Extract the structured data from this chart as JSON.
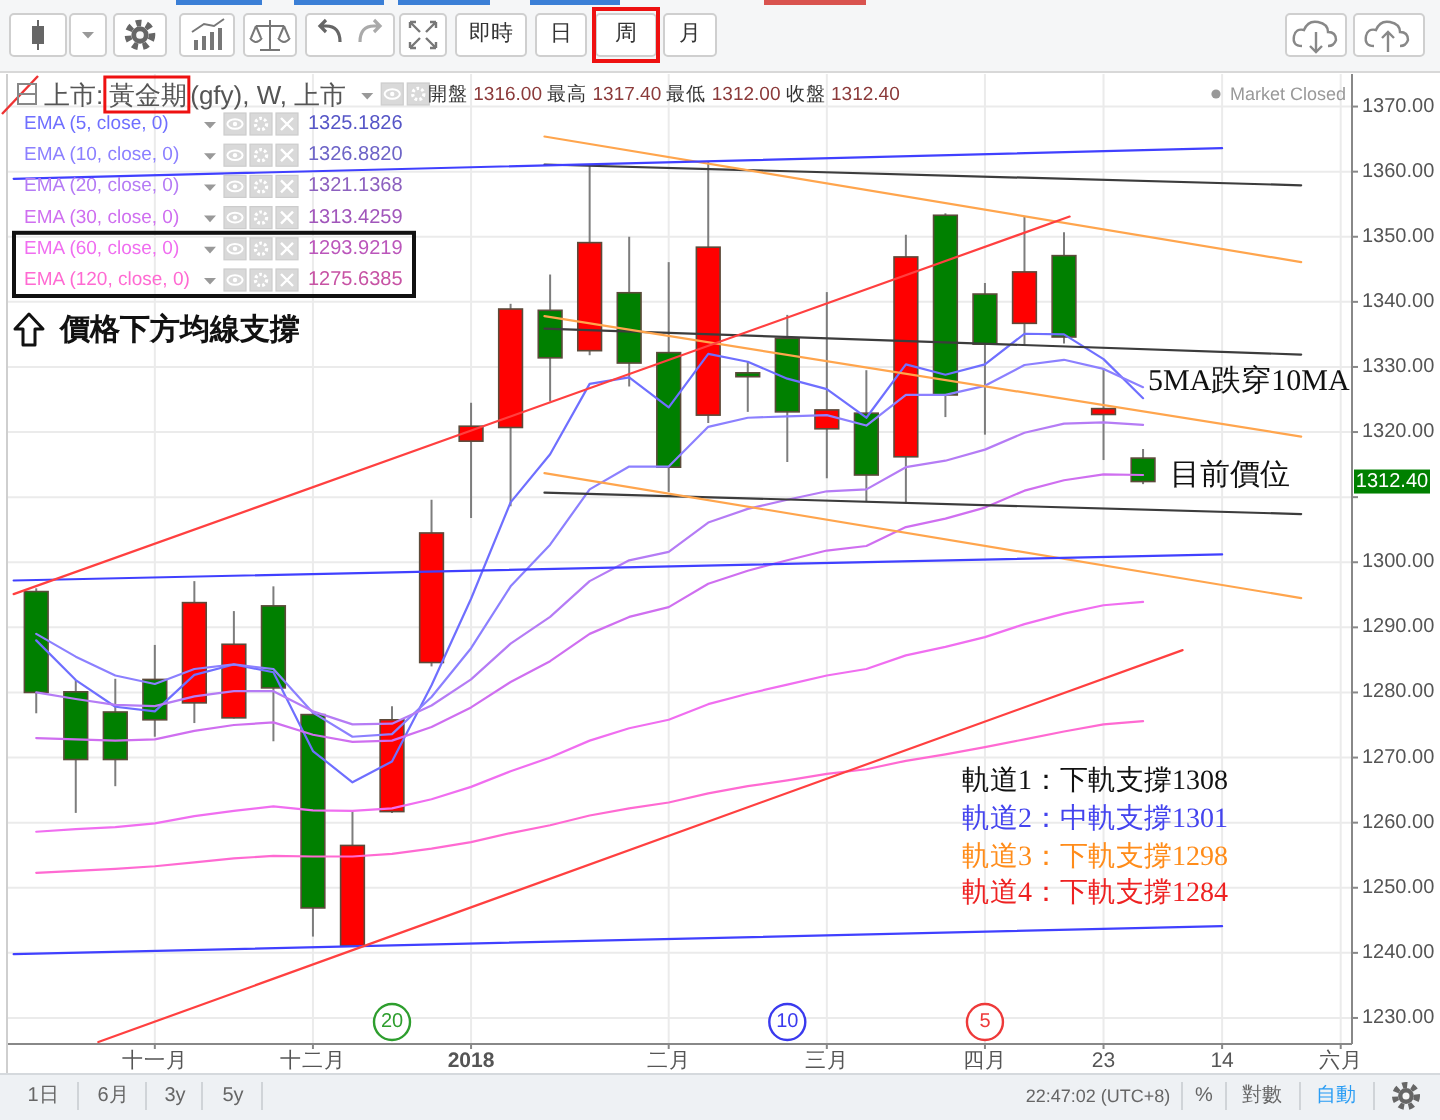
{
  "chart_data": {
    "type": "candlestick",
    "title": "上市:黃金期(gfy), W, 上市",
    "x": [
      "2017-10-16",
      "2017-10-23",
      "2017-10-30",
      "2017-11-06",
      "2017-11-13",
      "2017-11-20",
      "2017-11-27",
      "2017-12-04",
      "2017-12-11",
      "2017-12-18",
      "2017-12-25",
      "2018-01-01",
      "2018-01-08",
      "2018-01-15",
      "2018-01-22",
      "2018-01-29",
      "2018-02-05",
      "2018-02-12",
      "2018-02-19",
      "2018-02-26",
      "2018-03-05",
      "2018-03-12",
      "2018-03-19",
      "2018-03-26",
      "2018-04-02",
      "2018-04-09",
      "2018-04-16",
      "2018-04-23",
      "2018-04-30"
    ],
    "ohlc": [
      [
        1295.5,
        1296.0,
        1276.8,
        1280.0
      ],
      [
        1280.1,
        1281.9,
        1261.5,
        1269.7
      ],
      [
        1277.0,
        1282.1,
        1265.6,
        1269.7
      ],
      [
        1282.0,
        1287.3,
        1273.2,
        1275.8
      ],
      [
        1278.4,
        1297.1,
        1275.3,
        1293.8
      ],
      [
        1276.1,
        1292.5,
        1276.0,
        1287.4
      ],
      [
        1293.3,
        1296.3,
        1272.5,
        1280.7
      ],
      [
        1276.6,
        1277.0,
        1242.5,
        1246.9
      ],
      [
        1241.1,
        1261.7,
        1241.0,
        1256.5
      ],
      [
        1261.7,
        1277.9,
        1261.5,
        1275.8
      ],
      [
        1284.6,
        1309.6,
        1284.0,
        1304.5
      ],
      [
        1318.6,
        1324.5,
        1306.8,
        1320.9
      ],
      [
        1320.7,
        1339.7,
        1308.6,
        1338.9
      ],
      [
        1338.7,
        1344.2,
        1324.7,
        1331.4
      ],
      [
        1332.5,
        1361.0,
        1331.8,
        1349.1
      ],
      [
        1341.4,
        1350.0,
        1327.0,
        1330.6
      ],
      [
        1332.2,
        1346.1,
        1310.8,
        1314.6
      ],
      [
        1322.6,
        1361.5,
        1321.4,
        1348.4
      ],
      [
        1329.1,
        1330.8,
        1323.1,
        1328.5
      ],
      [
        1334.4,
        1338.0,
        1315.4,
        1323.1
      ],
      [
        1320.5,
        1341.5,
        1312.9,
        1323.4
      ],
      [
        1322.9,
        1329.5,
        1309.3,
        1313.4
      ],
      [
        1316.2,
        1350.3,
        1309.0,
        1346.9
      ],
      [
        1353.3,
        1353.6,
        1322.3,
        1325.7
      ],
      [
        1341.2,
        1342.9,
        1319.6,
        1333.5
      ],
      [
        1336.7,
        1353.1,
        1333.4,
        1344.6
      ],
      [
        1347.1,
        1350.7,
        1333.6,
        1334.6
      ],
      [
        1322.7,
        1329.8,
        1315.7,
        1323.6
      ],
      [
        1316.0,
        1317.4,
        1312.0,
        1312.4
      ]
    ],
    "colors": [
      "#008000",
      "#008000",
      "#008000",
      "#008000",
      "#ff0000",
      "#ff0000",
      "#008000",
      "#008000",
      "#ff0000",
      "#ff0000",
      "#ff0000",
      "#ff0000",
      "#ff0000",
      "#008000",
      "#ff0000",
      "#008000",
      "#008000",
      "#ff0000",
      "#008000",
      "#008000",
      "#ff0000",
      "#008000",
      "#ff0000",
      "#008000",
      "#008000",
      "#ff0000",
      "#008000",
      "#ff0000",
      "#008000"
    ],
    "series": [
      {
        "name": "EMA (5, close, 0)",
        "type": "line",
        "color": "#6f6fff",
        "values": [
          1288.0,
          1281.9,
          1277.8,
          1277.1,
          1282.7,
          1284.3,
          1283.1,
          1271.0,
          1266.2,
          1269.4,
          1281.1,
          1294.4,
          1309.2,
          1316.6,
          1327.4,
          1328.4,
          1323.8,
          1332.0,
          1330.8,
          1328.2,
          1326.6,
          1322.2,
          1330.4,
          1328.8,
          1330.4,
          1335.1,
          1335.0,
          1331.2,
          1325.2
        ]
      },
      {
        "name": "EMA (10, close, 0)",
        "type": "line",
        "color": "#8c80ff",
        "values": [
          1289.0,
          1285.5,
          1282.6,
          1281.3,
          1283.6,
          1284.3,
          1283.6,
          1276.9,
          1273.2,
          1273.6,
          1279.3,
          1286.8,
          1296.3,
          1302.7,
          1311.2,
          1314.7,
          1314.7,
          1320.8,
          1322.2,
          1322.4,
          1322.6,
          1321.0,
          1325.7,
          1325.7,
          1327.1,
          1330.3,
          1331.1,
          1329.7,
          1326.9
        ]
      },
      {
        "name": "EMA (20, close, 0)",
        "type": "line",
        "color": "#b57cf5",
        "values": [
          1280.0,
          1279.0,
          1278.1,
          1277.9,
          1279.4,
          1280.2,
          1280.2,
          1277.1,
          1275.1,
          1275.2,
          1278.0,
          1282.0,
          1287.5,
          1291.6,
          1297.1,
          1300.3,
          1301.6,
          1306.1,
          1308.2,
          1309.6,
          1310.9,
          1311.2,
          1314.6,
          1315.6,
          1317.3,
          1319.9,
          1321.3,
          1321.5,
          1321.1
        ]
      },
      {
        "name": "EMA (30, close, 0)",
        "type": "line",
        "color": "#cf6ff0",
        "values": [
          1273.0,
          1272.8,
          1272.6,
          1272.8,
          1274.1,
          1275.0,
          1275.4,
          1273.5,
          1272.4,
          1272.6,
          1274.7,
          1277.7,
          1281.6,
          1284.8,
          1289.0,
          1291.6,
          1293.1,
          1296.7,
          1298.7,
          1300.3,
          1301.8,
          1302.5,
          1305.4,
          1306.7,
          1308.4,
          1311.0,
          1312.6,
          1313.5,
          1313.4
        ]
      },
      {
        "name": "EMA (60, close, 0)",
        "type": "line",
        "color": "#f06ef0",
        "values": [
          1258.6,
          1259.0,
          1259.3,
          1259.9,
          1261.0,
          1261.8,
          1262.5,
          1261.9,
          1261.8,
          1262.2,
          1263.6,
          1265.5,
          1267.9,
          1270.0,
          1272.6,
          1274.5,
          1275.8,
          1278.2,
          1279.8,
          1281.2,
          1282.6,
          1283.6,
          1285.7,
          1287.0,
          1288.5,
          1290.5,
          1292.1,
          1293.4,
          1293.9
        ]
      },
      {
        "name": "EMA (120, close, 0)",
        "type": "line",
        "color": "#ff6ad2",
        "values": [
          1252.3,
          1252.6,
          1252.9,
          1253.3,
          1253.9,
          1254.5,
          1254.9,
          1254.8,
          1254.8,
          1255.2,
          1256.0,
          1257.0,
          1258.4,
          1259.6,
          1261.1,
          1262.2,
          1263.1,
          1264.5,
          1265.6,
          1266.5,
          1267.5,
          1268.2,
          1269.5,
          1270.5,
          1271.6,
          1272.8,
          1274.0,
          1275.1,
          1275.6
        ]
      },
      {
        "type": "line",
        "color": "#3c3c3c",
        "x": [
          "2018-01-14",
          "2018-05-28"
        ],
        "values": [
          1361.1,
          1357.9
        ]
      },
      {
        "type": "line",
        "color": "#3c3c3c",
        "x": [
          "2018-01-14",
          "2018-05-28"
        ],
        "values": [
          1335.9,
          1331.9
        ]
      },
      {
        "type": "line",
        "color": "#3c3c3c",
        "x": [
          "2018-01-14",
          "2018-05-28"
        ],
        "values": [
          1310.7,
          1307.4
        ]
      },
      {
        "type": "line",
        "color": "#ffa54d",
        "x": [
          "2018-01-14",
          "2018-05-28"
        ],
        "values": [
          1365.4,
          1346.1
        ]
      },
      {
        "type": "line",
        "color": "#ffa54d",
        "x": [
          "2018-01-14",
          "2018-05-28"
        ],
        "values": [
          1337.8,
          1319.3
        ]
      },
      {
        "type": "line",
        "color": "#ffa54d",
        "x": [
          "2018-01-14",
          "2018-05-28"
        ],
        "values": [
          1313.7,
          1294.5
        ]
      },
      {
        "type": "line",
        "color": "#4040ff",
        "x": [
          "2017-10-12",
          "2018-05-14"
        ],
        "values": [
          1358.9,
          1363.6
        ]
      },
      {
        "type": "line",
        "color": "#4040ff",
        "x": [
          "2017-10-12",
          "2018-05-14"
        ],
        "values": [
          1297.2,
          1301.2
        ]
      },
      {
        "type": "line",
        "color": "#4040ff",
        "x": [
          "2017-10-12",
          "2018-05-14"
        ],
        "values": [
          1239.8,
          1244.1
        ]
      },
      {
        "type": "line",
        "color": "#ff4040",
        "x": [
          "2017-10-12",
          "2018-04-17"
        ],
        "values": [
          1295.1,
          1353.1
        ]
      },
      {
        "type": "line",
        "color": "#ff4040",
        "x": [
          "2017-10-27",
          "2018-05-07"
        ],
        "values": [
          1226.3,
          1286.5
        ]
      }
    ],
    "xlim": [
      "2017-10-11",
      "2018-06-06"
    ],
    "xticks": [
      {
        "value": "2017-11-06",
        "label": "十一月"
      },
      {
        "value": "2017-12-04",
        "label": "十二月"
      },
      {
        "value": "2018-01-01",
        "label": "2018"
      },
      {
        "value": "2018-02-05",
        "label": "二月"
      },
      {
        "value": "2018-03-05",
        "label": "三月"
      },
      {
        "value": "2018-04-02",
        "label": "四月"
      },
      {
        "value": "2018-04-23",
        "label": "23"
      },
      {
        "value": "2018-05-14",
        "label": "14"
      },
      {
        "value": "2018-06-04",
        "label": "六月"
      }
    ],
    "ylim": [
      1226,
      1375
    ],
    "yticks": [
      {
        "value": 1230,
        "label": "1230.00"
      },
      {
        "value": 1240,
        "label": "1240.00"
      },
      {
        "value": 1250,
        "label": "1250.00"
      },
      {
        "value": 1260,
        "label": "1260.00"
      },
      {
        "value": 1270,
        "label": "1270.00"
      },
      {
        "value": 1280,
        "label": "1280.00"
      },
      {
        "value": 1290,
        "label": "1290.00"
      },
      {
        "value": 1300,
        "label": "1300.00"
      },
      {
        "value": 1310,
        "label": null
      },
      {
        "value": 1320,
        "label": "1320.00"
      },
      {
        "value": 1330,
        "label": "1330.00"
      },
      {
        "value": 1340,
        "label": "1340.00"
      },
      {
        "value": 1350,
        "label": "1350.00"
      },
      {
        "value": 1360,
        "label": "1360.00"
      },
      {
        "value": 1370,
        "label": "1370.00"
      }
    ],
    "grid": true,
    "legend": "top left",
    "annotations": [
      "開盤 1316.00 最高 1317.40 最低 1312.00 收盤 1312.40",
      "Market Closed",
      "價格下方均線支撐",
      "5MA跌穿10MA",
      "目前價位",
      "軌道1：下軌支撐1308",
      "軌道2：中軌支撐1301",
      "軌道3：下軌支撐1298",
      "軌道4：下軌支撐1284",
      {
        "text": "20",
        "x": "2017-12-18"
      },
      {
        "text": "10",
        "x": "2018-02-26"
      },
      {
        "text": "5",
        "x": "2018-04-02"
      },
      {
        "text": "1312.40",
        "y": 1312.4
      },
      "即時",
      "日",
      "周",
      "月",
      "1日",
      "6月",
      "3y",
      "5y",
      "22:47:02 (UTC+8)",
      "%",
      "對數",
      "自動",
      "1325.1826",
      "1326.8820",
      "1321.1368",
      "1313.4259",
      "1293.9219",
      "1275.6385"
    ]
  }
}
